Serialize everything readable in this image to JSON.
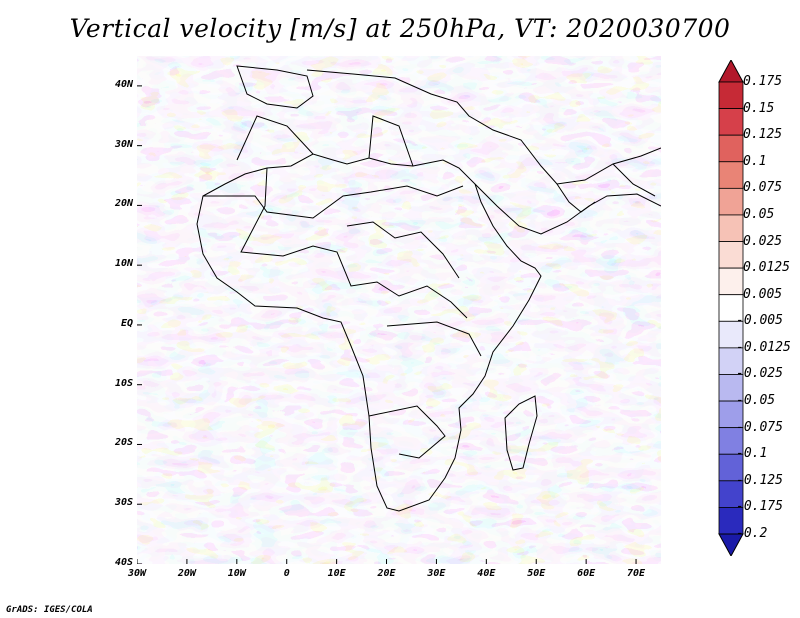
{
  "title": "Vertical velocity [m/s] at 250hPa, VT: 2020030700",
  "credit": "GrADS: IGES/COLA",
  "map": {
    "lon_range": [
      -30,
      75
    ],
    "lat_range": [
      -40,
      45
    ],
    "lon_ticks": [
      "30W",
      "20W",
      "10W",
      "0",
      "10E",
      "20E",
      "30E",
      "40E",
      "50E",
      "60E",
      "70E"
    ],
    "lon_tick_values": [
      -30,
      -20,
      -10,
      0,
      10,
      20,
      30,
      40,
      50,
      60,
      70
    ],
    "lat_ticks": [
      "40N",
      "30N",
      "20N",
      "10N",
      "EQ",
      "10S",
      "20S",
      "30S",
      "40S"
    ],
    "lat_tick_values": [
      40,
      30,
      20,
      10,
      0,
      -10,
      -20,
      -30,
      -40
    ]
  },
  "colorbar": {
    "labels": [
      "0.175",
      "0.15",
      "0.125",
      "0.1",
      "0.075",
      "0.05",
      "0.025",
      "0.0125",
      "0.005",
      "-0.005",
      "-0.0125",
      "-0.025",
      "-0.05",
      "-0.075",
      "-0.1",
      "-0.125",
      "-0.175",
      "-0.2"
    ],
    "colors": [
      "#b2182b",
      "#c62a36",
      "#d6404a",
      "#e0625e",
      "#e98476",
      "#f0a396",
      "#f6c2b6",
      "#fadcd4",
      "#fdf0ec",
      "#ffffff",
      "#e9e9fb",
      "#d2d2f6",
      "#b9b9f0",
      "#9e9eea",
      "#8080e2",
      "#6262d8",
      "#4343cc",
      "#2a2abd",
      "#1a1aa8"
    ]
  }
}
